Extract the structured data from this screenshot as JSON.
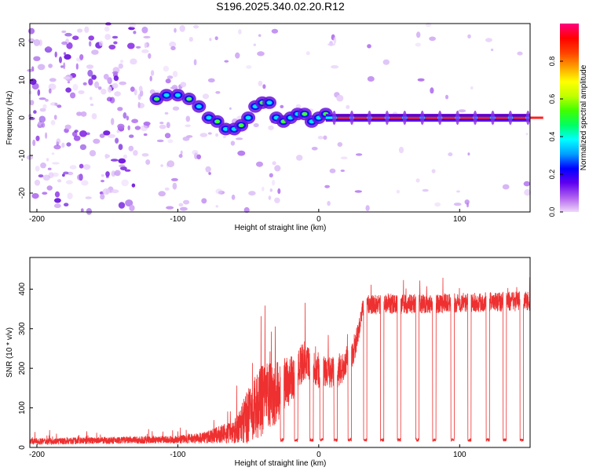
{
  "title": "S196.2025.340.02.20.R12",
  "chart_data": [
    {
      "type": "heatmap",
      "name": "spectrogram",
      "xlabel": "Height of straight line (km)",
      "ylabel": "Frequency (Hz)",
      "xlim": [
        -205,
        150
      ],
      "ylim": [
        -25,
        25
      ],
      "xticks": [
        -200,
        -100,
        0,
        100
      ],
      "xtick_labels": [
        "-200",
        "-100",
        "0",
        "100"
      ],
      "yticks": [
        -20,
        -10,
        0,
        10,
        20
      ],
      "ytick_labels": [
        "-20",
        "-10",
        "0",
        "10",
        "20"
      ],
      "colorbar": {
        "label": "Normalized spectral amplitude",
        "range": [
          0,
          1
        ],
        "ticks": [
          0.0,
          0.2,
          0.4,
          0.6,
          0.8
        ],
        "tick_labels": [
          "0.0",
          "0.2",
          "0.4",
          "0.6",
          "0.8"
        ],
        "colors": [
          "#f0d8f8",
          "#b060f0",
          "#6000f0",
          "#0000ff",
          "#00a0ff",
          "#00ffff",
          "#00ff60",
          "#40ff00",
          "#c0ff00",
          "#ffff00",
          "#ffa000",
          "#ff4000",
          "#ff0000",
          "#ff0080"
        ]
      },
      "ridge": [
        {
          "x": -115,
          "y": 5
        },
        {
          "x": -108,
          "y": 6
        },
        {
          "x": -100,
          "y": 6
        },
        {
          "x": -92,
          "y": 5
        },
        {
          "x": -85,
          "y": 3
        },
        {
          "x": -78,
          "y": 0
        },
        {
          "x": -72,
          "y": -1
        },
        {
          "x": -66,
          "y": -3
        },
        {
          "x": -60,
          "y": -3
        },
        {
          "x": -55,
          "y": -2
        },
        {
          "x": -50,
          "y": 0
        },
        {
          "x": -45,
          "y": 3
        },
        {
          "x": -40,
          "y": 4
        },
        {
          "x": -35,
          "y": 4
        },
        {
          "x": -30,
          "y": 0
        },
        {
          "x": -25,
          "y": -1
        },
        {
          "x": -20,
          "y": 0
        },
        {
          "x": -15,
          "y": 1
        },
        {
          "x": -10,
          "y": 1
        },
        {
          "x": -5,
          "y": -1
        },
        {
          "x": 0,
          "y": 0
        },
        {
          "x": 5,
          "y": 1
        }
      ],
      "steady_line": {
        "x_start": 5,
        "x_end": 150,
        "y": 0,
        "spike_spacing": 12.5
      }
    },
    {
      "type": "line",
      "name": "snr",
      "xlabel": "Height of straight line (km)",
      "ylabel": "SNR (10 * v/v)",
      "xlim": [
        -205,
        150
      ],
      "ylim": [
        0,
        480
      ],
      "xticks": [
        -200,
        -100,
        0,
        100
      ],
      "xtick_labels": [
        "-200",
        "-100",
        "0",
        "100"
      ],
      "yticks": [
        0,
        100,
        200,
        300,
        400
      ],
      "ytick_labels": [
        "0",
        "100",
        "200",
        "300",
        "400"
      ],
      "series": [
        {
          "name": "SNR",
          "color": "#ee3030",
          "envelope": [
            {
              "x": -205,
              "mean": 15,
              "spread": 8
            },
            {
              "x": -100,
              "mean": 20,
              "spread": 10
            },
            {
              "x": -80,
              "mean": 25,
              "spread": 15
            },
            {
              "x": -60,
              "mean": 40,
              "spread": 30
            },
            {
              "x": -50,
              "mean": 80,
              "spread": 70
            },
            {
              "x": -40,
              "mean": 120,
              "spread": 90
            },
            {
              "x": -30,
              "mean": 140,
              "spread": 80
            },
            {
              "x": -20,
              "mean": 170,
              "spread": 60
            },
            {
              "x": -10,
              "mean": 220,
              "spread": 50
            },
            {
              "x": 0,
              "mean": 190,
              "spread": 40
            },
            {
              "x": 15,
              "mean": 190,
              "spread": 40
            },
            {
              "x": 25,
              "mean": 240,
              "spread": 30
            },
            {
              "x": 32,
              "mean": 360,
              "spread": 25
            },
            {
              "x": 150,
              "mean": 370,
              "spread": 25
            }
          ],
          "drops": [
            -26,
            -16,
            -5,
            2,
            12,
            22,
            33,
            45,
            57,
            70,
            82,
            95,
            107,
            120,
            132,
            144
          ],
          "drop_level": 15
        }
      ]
    }
  ]
}
